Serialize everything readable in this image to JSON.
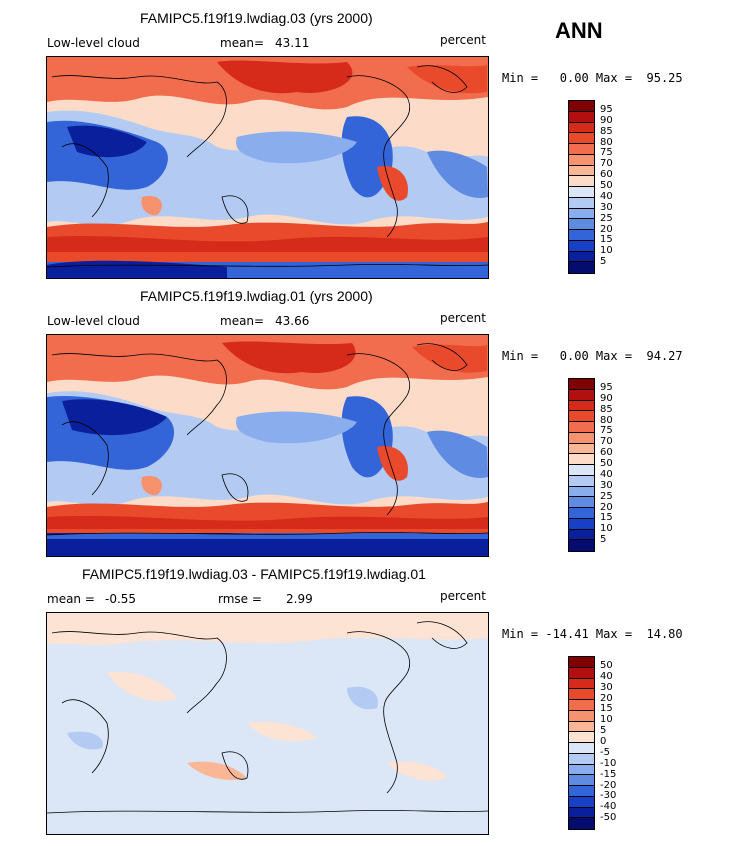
{
  "season": "ANN",
  "panels": [
    {
      "title": "FAMIPC5.f19f19.lwdiag.03 (yrs 2000)",
      "left_label": "Low-level cloud",
      "stat1_label": "mean=",
      "stat1_value": "43.11",
      "stat2_label": "",
      "stat2_value": "",
      "units": "percent",
      "minmax": "Min =   0.00 Max =  95.25",
      "colorbar_labels": [
        "95",
        "90",
        "85",
        "80",
        "75",
        "70",
        "60",
        "50",
        "40",
        "30",
        "25",
        "20",
        "15",
        "10",
        "5"
      ],
      "colorbar_colors": [
        "#800000",
        "#b21010",
        "#d62b1a",
        "#ea4a2c",
        "#f26d4d",
        "#f7926f",
        "#fab695",
        "#fcdcc8",
        "#dbe6f7",
        "#b3cbf2",
        "#8aaded",
        "#5f8be3",
        "#3465d8",
        "#1740c7",
        "#0a1f9c",
        "#040c6e"
      ]
    },
    {
      "title": "FAMIPC5.f19f19.lwdiag.01 (yrs 2000)",
      "left_label": "Low-level cloud",
      "stat1_label": "mean=",
      "stat1_value": "43.66",
      "stat2_label": "",
      "stat2_value": "",
      "units": "percent",
      "minmax": "Min =   0.00 Max =  94.27",
      "colorbar_labels": [
        "95",
        "90",
        "85",
        "80",
        "75",
        "70",
        "60",
        "50",
        "40",
        "30",
        "25",
        "20",
        "15",
        "10",
        "5"
      ],
      "colorbar_colors": [
        "#800000",
        "#b21010",
        "#d62b1a",
        "#ea4a2c",
        "#f26d4d",
        "#f7926f",
        "#fab695",
        "#fcdcc8",
        "#dbe6f7",
        "#b3cbf2",
        "#8aaded",
        "#5f8be3",
        "#3465d8",
        "#1740c7",
        "#0a1f9c",
        "#040c6e"
      ]
    },
    {
      "title": "FAMIPC5.f19f19.lwdiag.03 - FAMIPC5.f19f19.lwdiag.01",
      "left_label": "",
      "stat1_label": "mean =",
      "stat1_value": "-0.55",
      "stat2_label": "rmse =",
      "stat2_value": "2.99",
      "units": "percent",
      "minmax": "Min = -14.41 Max =  14.80",
      "colorbar_labels": [
        "50",
        "40",
        "30",
        "20",
        "15",
        "10",
        "5",
        "0",
        "-5",
        "-10",
        "-15",
        "-20",
        "-30",
        "-40",
        "-50"
      ],
      "colorbar_colors": [
        "#800000",
        "#b21010",
        "#d62b1a",
        "#ea4a2c",
        "#f26d4d",
        "#f7926f",
        "#fab695",
        "#fde3d3",
        "#dbe6f7",
        "#b3cbf2",
        "#8aaded",
        "#5f8be3",
        "#3465d8",
        "#1740c7",
        "#0a1f9c",
        "#040c6e"
      ]
    }
  ]
}
